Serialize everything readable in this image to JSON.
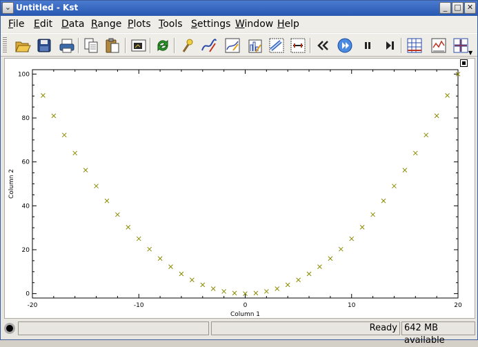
{
  "window": {
    "title": "Untitled - Kst",
    "buttons": [
      "minimize-icon",
      "maximize-icon",
      "close-icon"
    ]
  },
  "menu": [
    {
      "label": "File",
      "mnemonic": "F",
      "rest": "ile"
    },
    {
      "label": "Edit",
      "mnemonic": "E",
      "rest": "dit"
    },
    {
      "label": "Data",
      "mnemonic": "D",
      "rest": "ata"
    },
    {
      "label": "Range",
      "mnemonic": "R",
      "rest": "ange"
    },
    {
      "label": "Plots",
      "mnemonic": "P",
      "rest": "lots"
    },
    {
      "label": "Tools",
      "mnemonic": "T",
      "rest": "ools"
    },
    {
      "label": "Settings",
      "mnemonic": "S",
      "rest": "ettings"
    },
    {
      "label": "Window",
      "mnemonic": "W",
      "rest": "indow"
    },
    {
      "label": "Help",
      "mnemonic": "H",
      "rest": "elp"
    }
  ],
  "toolbar": {
    "tools": [
      "open-icon",
      "save-icon",
      "print-icon",
      "copy-icon",
      "paste-icon",
      "export-icon",
      "reload-icon",
      "data-wizard-icon",
      "new-curve-icon",
      "new-equation-icon",
      "new-histogram-icon",
      "new-spectrum-icon",
      "new-plugin-icon",
      "back-icon",
      "play-icon",
      "pause-icon",
      "advance-icon",
      "zoom-icon",
      "xy-mode-icon",
      "layout-icon"
    ]
  },
  "status": {
    "message": "Ready",
    "memory": "642 MB available"
  },
  "chart_data": {
    "type": "scatter",
    "title": "",
    "xlabel": "Column 1",
    "ylabel": "Column 2",
    "xlim": [
      -20,
      20
    ],
    "ylim": [
      -2,
      102
    ],
    "xticks": [
      -20,
      -10,
      0,
      10,
      20
    ],
    "yticks": [
      0,
      20,
      40,
      60,
      80,
      100
    ],
    "marker": "x",
    "color": "#8a8a00",
    "x": [
      -19,
      -18,
      -17,
      -16,
      -15,
      -14,
      -13,
      -12,
      -11,
      -10,
      -9,
      -8,
      -7,
      -6,
      -5,
      -4,
      -3,
      -2,
      -1,
      0,
      1,
      2,
      3,
      4,
      5,
      6,
      7,
      8,
      9,
      10,
      11,
      12,
      13,
      14,
      15,
      16,
      17,
      18,
      19,
      20
    ],
    "y": [
      90.25,
      81,
      72.25,
      64,
      56.25,
      49,
      42.25,
      36,
      30.25,
      25,
      20.25,
      16,
      12.25,
      9,
      6.25,
      4,
      2.25,
      1,
      0.25,
      0,
      0.25,
      1,
      2.25,
      4,
      6.25,
      9,
      12.25,
      16,
      20.25,
      25,
      30.25,
      36,
      42.25,
      49,
      56.25,
      64,
      72.25,
      81,
      90.25,
      100
    ]
  }
}
